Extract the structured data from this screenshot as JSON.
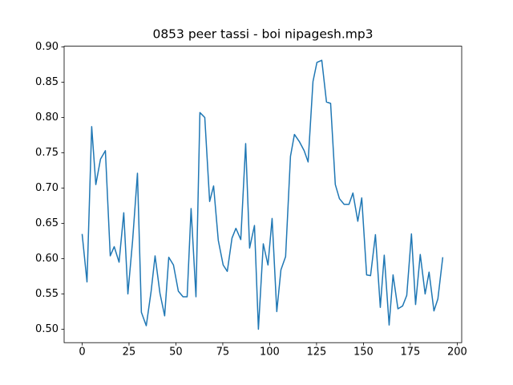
{
  "chart_data": {
    "type": "line",
    "title": "0853 peer tassi - boi nipagesh.mp3",
    "x": [
      0,
      2.6,
      5.1,
      7.3,
      9.8,
      12.4,
      15,
      17.1,
      19.7,
      22.2,
      24.4,
      26.9,
      29.5,
      31.6,
      34.2,
      36.8,
      38.9,
      41.5,
      44,
      46.2,
      48.7,
      51.3,
      53.8,
      56,
      58.1,
      60.7,
      62.8,
      65.4,
      68,
      70.1,
      72.6,
      75.2,
      77.4,
      79.9,
      82,
      84.6,
      87.2,
      89.3,
      91.9,
      94,
      96.6,
      99.1,
      101.3,
      103.8,
      106,
      108.5,
      111.1,
      113.2,
      115.8,
      118.4,
      120.5,
      123.1,
      125.2,
      127.8,
      130.3,
      132.5,
      135,
      137.2,
      139.7,
      142.3,
      144.4,
      147,
      149.1,
      151.7,
      153.8,
      156.4,
      159,
      161.1,
      163.7,
      165.8,
      168.4,
      170.9,
      173.1,
      175.6,
      177.8,
      180.3,
      182.9,
      185,
      187.6,
      189.7,
      192.3
    ],
    "series": [
      {
        "color": "#1f77b4",
        "values": [
          0.635,
          0.567,
          0.787,
          0.705,
          0.741,
          0.753,
          0.604,
          0.617,
          0.595,
          0.665,
          0.55,
          0.625,
          0.721,
          0.524,
          0.505,
          0.554,
          0.604,
          0.551,
          0.519,
          0.602,
          0.591,
          0.554,
          0.546,
          0.546,
          0.671,
          0.546,
          0.807,
          0.8,
          0.681,
          0.703,
          0.626,
          0.591,
          0.582,
          0.629,
          0.643,
          0.627,
          0.763,
          0.615,
          0.647,
          0.5,
          0.621,
          0.591,
          0.657,
          0.525,
          0.584,
          0.603,
          0.745,
          0.776,
          0.766,
          0.753,
          0.737,
          0.851,
          0.878,
          0.881,
          0.822,
          0.82,
          0.705,
          0.685,
          0.677,
          0.677,
          0.693,
          0.653,
          0.686,
          0.577,
          0.576,
          0.634,
          0.531,
          0.605,
          0.506,
          0.577,
          0.529,
          0.533,
          0.548,
          0.635,
          0.535,
          0.606,
          0.55,
          0.581,
          0.526,
          0.543,
          0.602
        ]
      }
    ],
    "xlim": [
      -9.6,
      202.4
    ],
    "xticks": [
      0,
      25,
      50,
      75,
      100,
      125,
      150,
      175,
      200
    ],
    "ylim": [
      0.481,
      0.901
    ],
    "yticks": [
      {
        "value": 0.5,
        "label": "0.50"
      },
      {
        "value": 0.55,
        "label": "0.55"
      },
      {
        "value": 0.6,
        "label": "0.60"
      },
      {
        "value": 0.65,
        "label": "0.65"
      },
      {
        "value": 0.7,
        "label": "0.70"
      },
      {
        "value": 0.75,
        "label": "0.75"
      },
      {
        "value": 0.8,
        "label": "0.80"
      },
      {
        "value": 0.85,
        "label": "0.85"
      },
      {
        "value": 0.9,
        "label": "0.90"
      }
    ],
    "grid": false
  }
}
